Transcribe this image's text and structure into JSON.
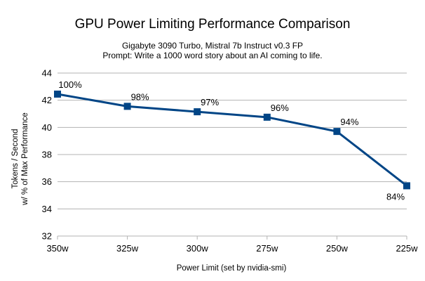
{
  "chart_data": {
    "type": "line",
    "title": "GPU Power Limiting Performance Comparison",
    "subtitle": [
      "Gigabyte 3090 Turbo, Mistral 7b Instruct v0.3 FP",
      "Prompt: Write a 1000 word story about an AI coming to life."
    ],
    "xlabel": "Power Limit (set by nvidia-smi)",
    "ylabel": [
      "Tokens / Second",
      "w/ % of Max Performance"
    ],
    "categories": [
      "350w",
      "325w",
      "300w",
      "275w",
      "250w",
      "225w"
    ],
    "y_ticks": [
      "32",
      "34",
      "36",
      "38",
      "40",
      "42",
      "44"
    ],
    "ylim": [
      32,
      44
    ],
    "grid": "horizontal",
    "series": [
      {
        "values": [
          42.45,
          41.55,
          41.15,
          40.75,
          39.7,
          35.7
        ],
        "labels": [
          "100%",
          "98%",
          "97%",
          "96%",
          "94%",
          "84%"
        ],
        "color": "#004586"
      }
    ]
  }
}
